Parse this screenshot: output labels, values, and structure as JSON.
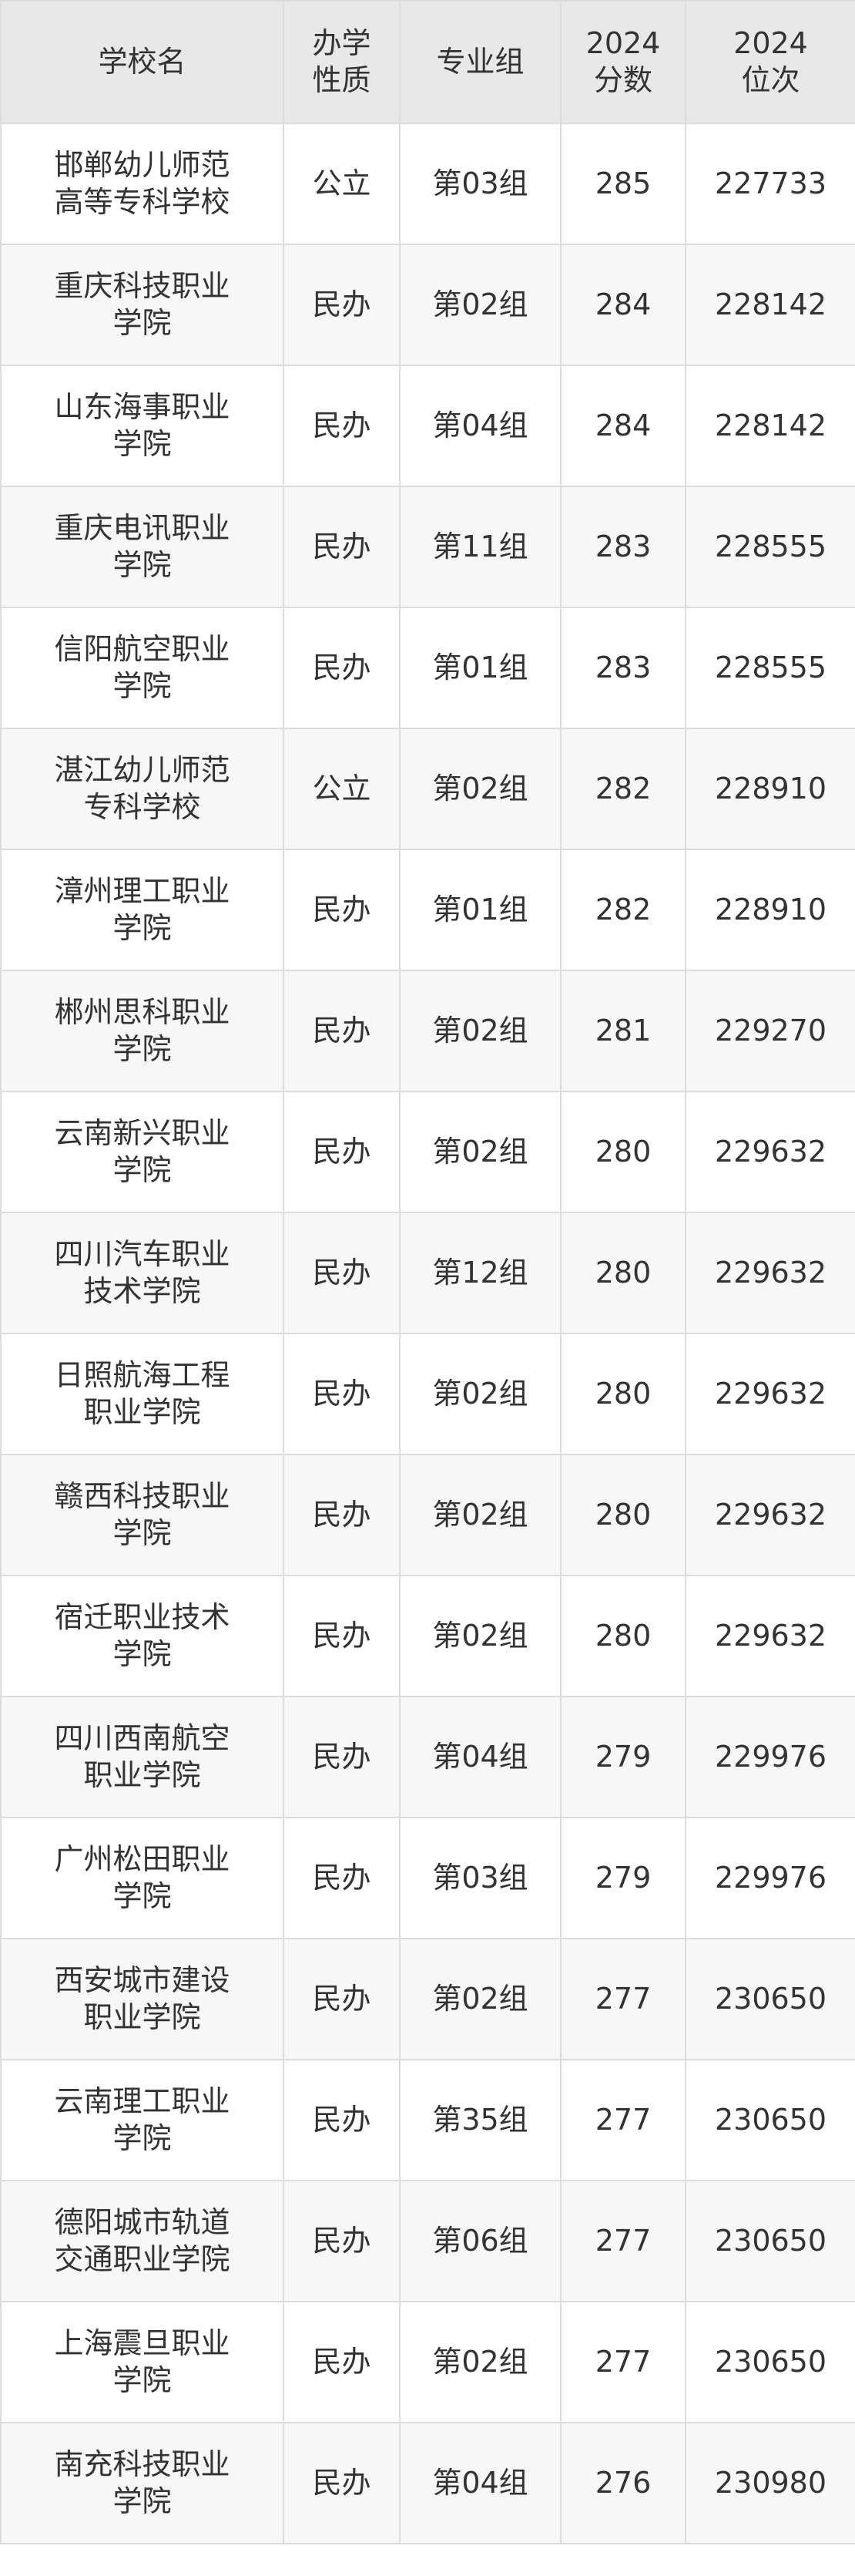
{
  "table": {
    "header": [
      "学校名",
      "办学\n性质",
      "专业组",
      "2024\n分数",
      "2024\n位次"
    ],
    "rows": [
      [
        "邯郸幼儿师范高等专科学校",
        "公立",
        "第03组",
        "285",
        "227733"
      ],
      [
        "重庆科技职业学院",
        "民办",
        "第02组",
        "284",
        "228142"
      ],
      [
        "山东海事职业学院",
        "民办",
        "第04组",
        "284",
        "228142"
      ],
      [
        "重庆电讯职业学院",
        "民办",
        "第11组",
        "283",
        "228555"
      ],
      [
        "信阳航空职业学院",
        "民办",
        "第01组",
        "283",
        "228555"
      ],
      [
        "湛江幼儿师范专科学校",
        "公立",
        "第02组",
        "282",
        "228910"
      ],
      [
        "漳州理工职业学院",
        "民办",
        "第01组",
        "282",
        "228910"
      ],
      [
        "郴州思科职业学院",
        "民办",
        "第02组",
        "281",
        "229270"
      ],
      [
        "云南新兴职业学院",
        "民办",
        "第02组",
        "280",
        "229632"
      ],
      [
        "四川汽车职业技术学院",
        "民办",
        "第12组",
        "280",
        "229632"
      ],
      [
        "日照航海工程职业学院",
        "民办",
        "第02组",
        "280",
        "229632"
      ],
      [
        "赣西科技职业学院",
        "民办",
        "第02组",
        "280",
        "229632"
      ],
      [
        "宿迁职业技术学院",
        "民办",
        "第02组",
        "280",
        "229632"
      ],
      [
        "四川西南航空职业学院",
        "民办",
        "第04组",
        "279",
        "229976"
      ],
      [
        "广州松田职业学院",
        "民办",
        "第03组",
        "279",
        "229976"
      ],
      [
        "西安城市建设职业学院",
        "民办",
        "第02组",
        "277",
        "230650"
      ],
      [
        "云南理工职业学院",
        "民办",
        "第35组",
        "277",
        "230650"
      ],
      [
        "德阳城市轨道交通职业学院",
        "民办",
        "第06组",
        "277",
        "230650"
      ],
      [
        "上海震旦职业学院",
        "民办",
        "第02组",
        "277",
        "230650"
      ],
      [
        "南充科技职业学院",
        "民办",
        "第04组",
        "276",
        "230980"
      ]
    ]
  }
}
